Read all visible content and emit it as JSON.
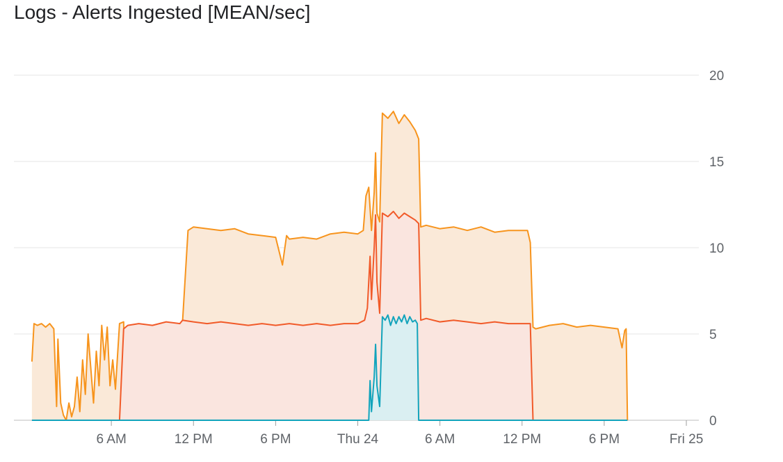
{
  "chart_data": {
    "type": "area",
    "title": "Logs - Alerts Ingested [MEAN/sec]",
    "xlabel": "",
    "ylabel": "",
    "ylim": [
      0,
      20
    ],
    "y_ticks": [
      0,
      5,
      10,
      15,
      20
    ],
    "y_axis_side": "right",
    "x_unit": "hours",
    "xlim": [
      0,
      48
    ],
    "x_ticks": [
      {
        "label": "6 AM",
        "x": 6
      },
      {
        "label": "12 PM",
        "x": 12
      },
      {
        "label": "6 PM",
        "x": 18
      },
      {
        "label": "Thu 24",
        "x": 24
      },
      {
        "label": "6 AM",
        "x": 30
      },
      {
        "label": "12 PM",
        "x": 36
      },
      {
        "label": "6 PM",
        "x": 42
      },
      {
        "label": "Fri 25",
        "x": 48
      }
    ],
    "grid": true,
    "legend": "none",
    "stacked": true,
    "series": [
      {
        "color": "#12a4bc",
        "fill": "#daeff2",
        "points": [
          [
            0.2,
            0
          ],
          [
            24.8,
            0
          ],
          [
            24.9,
            2.3
          ],
          [
            25.0,
            0.5
          ],
          [
            25.2,
            2.5
          ],
          [
            25.3,
            4.4
          ],
          [
            25.4,
            2.0
          ],
          [
            25.6,
            0.8
          ],
          [
            25.8,
            6.0
          ],
          [
            26.0,
            5.8
          ],
          [
            26.2,
            6.1
          ],
          [
            26.4,
            5.5
          ],
          [
            26.6,
            6.0
          ],
          [
            26.8,
            5.6
          ],
          [
            27.0,
            6.0
          ],
          [
            27.2,
            5.7
          ],
          [
            27.4,
            6.1
          ],
          [
            27.6,
            5.6
          ],
          [
            27.8,
            6.0
          ],
          [
            28.0,
            5.7
          ],
          [
            28.2,
            5.8
          ],
          [
            28.35,
            5.6
          ],
          [
            28.45,
            0
          ],
          [
            36.8,
            0
          ],
          [
            43.7,
            0
          ]
        ]
      },
      {
        "color": "#f15a29",
        "fill": "#fae5df",
        "points": [
          [
            0.2,
            0
          ],
          [
            6.0,
            0
          ],
          [
            6.6,
            0
          ],
          [
            6.9,
            5.3
          ],
          [
            7.2,
            5.5
          ],
          [
            8,
            5.6
          ],
          [
            9,
            5.5
          ],
          [
            10,
            5.7
          ],
          [
            11,
            5.6
          ],
          [
            11.2,
            5.8
          ],
          [
            12,
            5.7
          ],
          [
            13,
            5.6
          ],
          [
            14,
            5.7
          ],
          [
            15,
            5.6
          ],
          [
            16,
            5.5
          ],
          [
            17,
            5.6
          ],
          [
            18,
            5.5
          ],
          [
            19,
            5.6
          ],
          [
            20,
            5.5
          ],
          [
            21,
            5.6
          ],
          [
            22,
            5.5
          ],
          [
            23,
            5.6
          ],
          [
            24,
            5.6
          ],
          [
            24.5,
            5.8
          ],
          [
            24.7,
            6.5
          ],
          [
            24.9,
            9.5
          ],
          [
            25.0,
            7.0
          ],
          [
            25.2,
            10.0
          ],
          [
            25.3,
            11.9
          ],
          [
            25.4,
            8.0
          ],
          [
            25.6,
            6.2
          ],
          [
            25.8,
            12.0
          ],
          [
            26.2,
            11.8
          ],
          [
            26.6,
            12.1
          ],
          [
            27.0,
            11.7
          ],
          [
            27.4,
            12.0
          ],
          [
            27.8,
            11.8
          ],
          [
            28.2,
            11.6
          ],
          [
            28.45,
            11.4
          ],
          [
            28.6,
            5.8
          ],
          [
            29,
            5.9
          ],
          [
            30,
            5.7
          ],
          [
            31,
            5.8
          ],
          [
            32,
            5.7
          ],
          [
            33,
            5.6
          ],
          [
            34,
            5.7
          ],
          [
            35,
            5.6
          ],
          [
            36.6,
            5.6
          ],
          [
            36.8,
            0
          ],
          [
            43.7,
            0
          ]
        ]
      },
      {
        "color": "#f7941d",
        "fill": "#fae9d8",
        "points": [
          [
            0.2,
            3.4
          ],
          [
            0.35,
            5.6
          ],
          [
            0.6,
            5.5
          ],
          [
            0.9,
            5.6
          ],
          [
            1.2,
            5.4
          ],
          [
            1.5,
            5.6
          ],
          [
            1.8,
            5.3
          ],
          [
            2.0,
            0.8
          ],
          [
            2.1,
            4.7
          ],
          [
            2.3,
            1.0
          ],
          [
            2.5,
            0.3
          ],
          [
            2.7,
            0.0
          ],
          [
            2.9,
            1.0
          ],
          [
            3.1,
            0.2
          ],
          [
            3.3,
            0.8
          ],
          [
            3.5,
            2.5
          ],
          [
            3.7,
            0.5
          ],
          [
            3.9,
            3.5
          ],
          [
            4.1,
            1.5
          ],
          [
            4.3,
            5.0
          ],
          [
            4.5,
            3.0
          ],
          [
            4.7,
            1.0
          ],
          [
            4.9,
            4.0
          ],
          [
            5.1,
            2.0
          ],
          [
            5.3,
            5.5
          ],
          [
            5.5,
            3.5
          ],
          [
            5.7,
            5.4
          ],
          [
            5.9,
            2.0
          ],
          [
            6.1,
            3.5
          ],
          [
            6.3,
            1.8
          ],
          [
            6.6,
            5.6
          ],
          [
            6.9,
            5.7
          ],
          [
            7.0,
            1.0
          ],
          [
            7.2,
            0.0
          ],
          [
            7.9,
            0.0
          ],
          [
            8.0,
            4.9
          ],
          [
            8.2,
            5.3
          ],
          [
            9,
            5.5
          ],
          [
            10,
            5.4
          ],
          [
            11,
            5.6
          ],
          [
            11.2,
            5.7
          ],
          [
            11.6,
            11.0
          ],
          [
            12,
            11.2
          ],
          [
            13,
            11.1
          ],
          [
            14,
            11.0
          ],
          [
            15,
            11.1
          ],
          [
            16,
            10.8
          ],
          [
            17,
            10.7
          ],
          [
            18,
            10.6
          ],
          [
            18.5,
            9.0
          ],
          [
            18.8,
            10.7
          ],
          [
            19,
            10.5
          ],
          [
            20,
            10.6
          ],
          [
            21,
            10.5
          ],
          [
            22,
            10.8
          ],
          [
            23,
            10.9
          ],
          [
            24,
            10.8
          ],
          [
            24.4,
            11.0
          ],
          [
            24.6,
            13.0
          ],
          [
            24.8,
            13.5
          ],
          [
            25.0,
            11.0
          ],
          [
            25.2,
            13.2
          ],
          [
            25.3,
            15.5
          ],
          [
            25.4,
            12.0
          ],
          [
            25.6,
            11.5
          ],
          [
            25.8,
            17.8
          ],
          [
            26.2,
            17.5
          ],
          [
            26.6,
            17.9
          ],
          [
            27.0,
            17.2
          ],
          [
            27.4,
            17.7
          ],
          [
            27.8,
            17.3
          ],
          [
            28.2,
            16.8
          ],
          [
            28.45,
            16.3
          ],
          [
            28.6,
            11.2
          ],
          [
            29,
            11.3
          ],
          [
            30,
            11.1
          ],
          [
            31,
            11.2
          ],
          [
            32,
            11.0
          ],
          [
            33,
            11.2
          ],
          [
            34,
            10.9
          ],
          [
            35,
            11.0
          ],
          [
            36.4,
            11.0
          ],
          [
            36.6,
            10.3
          ],
          [
            36.8,
            5.4
          ],
          [
            37,
            5.3
          ],
          [
            38,
            5.5
          ],
          [
            39,
            5.6
          ],
          [
            40,
            5.4
          ],
          [
            41,
            5.5
          ],
          [
            42,
            5.4
          ],
          [
            43,
            5.3
          ],
          [
            43.3,
            4.2
          ],
          [
            43.5,
            5.2
          ],
          [
            43.6,
            5.3
          ],
          [
            43.7,
            0
          ]
        ]
      }
    ]
  }
}
